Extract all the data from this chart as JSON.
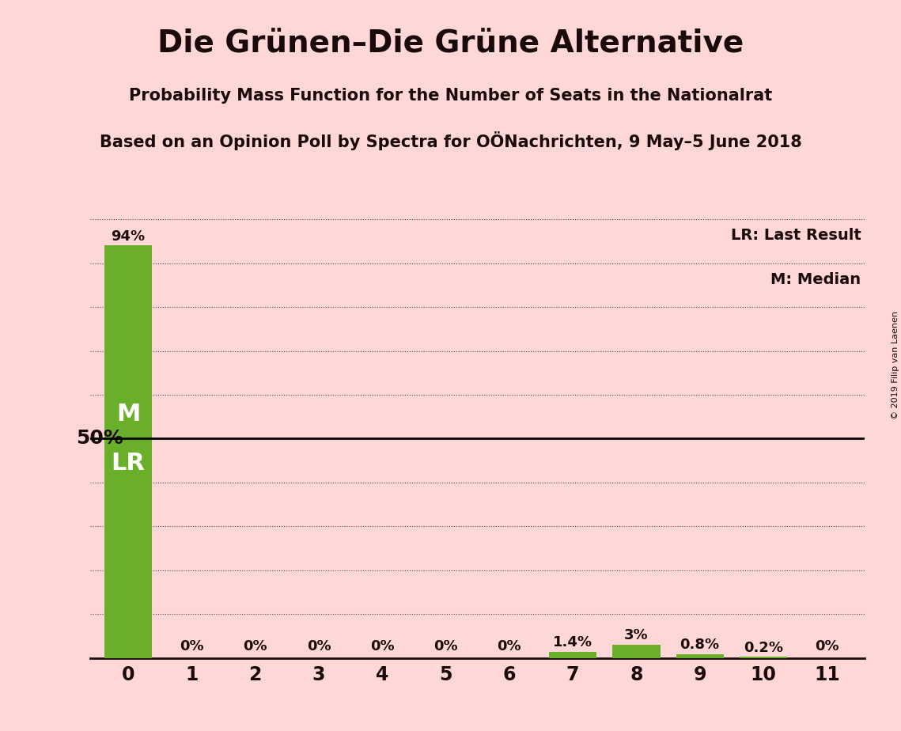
{
  "title": "Die Grünen–Die Grüne Alternative",
  "subtitle1": "Probability Mass Function for the Number of Seats in the Nationalrat",
  "subtitle2": "Based on an Opinion Poll by Spectra for OÖNachrichten, 9 May–5 June 2018",
  "copyright": "© 2019 Filip van Laenen",
  "seats": [
    0,
    1,
    2,
    3,
    4,
    5,
    6,
    7,
    8,
    9,
    10,
    11
  ],
  "probabilities": [
    94.0,
    0.0,
    0.0,
    0.0,
    0.0,
    0.0,
    0.0,
    1.4,
    3.0,
    0.8,
    0.2,
    0.0
  ],
  "bar_color": "#6AAF2A",
  "bg_color": "#FFD7D7",
  "text_color": "#1A0A0A",
  "ylabel_50": "50%",
  "legend_lr": "LR: Last Result",
  "legend_m": "M: Median",
  "dotted_yticks": [
    10,
    20,
    30,
    40,
    60,
    70,
    80,
    90,
    100
  ],
  "solid_ytick": 50,
  "ylim": [
    0,
    100
  ]
}
